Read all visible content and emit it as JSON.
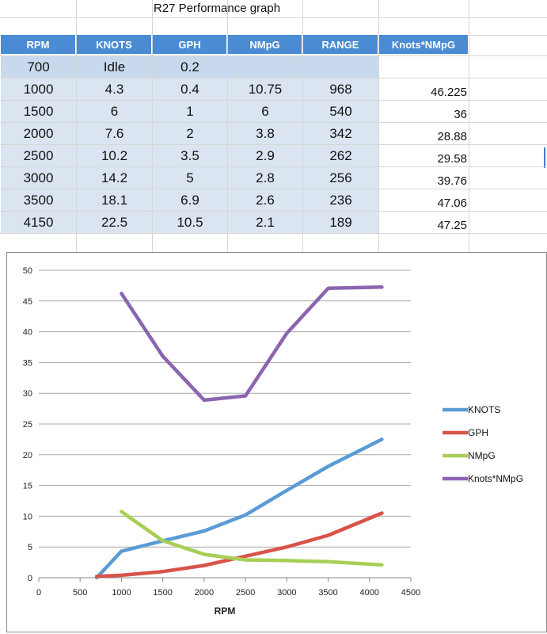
{
  "sheet": {
    "title": "R27 Performance graph",
    "headers": [
      "RPM",
      "KNOTS",
      "GPH",
      "NMpG",
      "RANGE",
      "Knots*NMpG"
    ],
    "rows": [
      [
        "700",
        "Idle",
        "0.2",
        "",
        "",
        ""
      ],
      [
        "1000",
        "4.3",
        "0.4",
        "10.75",
        "968",
        "46.225"
      ],
      [
        "1500",
        "6",
        "1",
        "6",
        "540",
        "36"
      ],
      [
        "2000",
        "7.6",
        "2",
        "3.8",
        "342",
        "28.88"
      ],
      [
        "2500",
        "10.2",
        "3.5",
        "2.9",
        "262",
        "29.58"
      ],
      [
        "3000",
        "14.2",
        "5",
        "2.8",
        "256",
        "39.76"
      ],
      [
        "3500",
        "18.1",
        "6.9",
        "2.6",
        "236",
        "47.06"
      ],
      [
        "4150",
        "22.5",
        "10.5",
        "2.1",
        "189",
        "47.25"
      ]
    ]
  },
  "chart_data": {
    "type": "line",
    "title": "",
    "xlabel": "RPM",
    "ylabel": "",
    "xlim": [
      0,
      4500
    ],
    "ylim": [
      0,
      50
    ],
    "xticks": [
      "0",
      "500",
      "1000",
      "1500",
      "2000",
      "2500",
      "3000",
      "3500",
      "4000",
      "4500"
    ],
    "yticks": [
      "0",
      "5",
      "10",
      "15",
      "20",
      "25",
      "30",
      "35",
      "40",
      "45",
      "50"
    ],
    "grid": true,
    "legend": "right",
    "series": [
      {
        "name": "KNOTS",
        "color": "#5b9bd5",
        "points": [
          [
            700,
            0
          ],
          [
            1000,
            4.3
          ],
          [
            1500,
            6
          ],
          [
            2000,
            7.6
          ],
          [
            2500,
            10.2
          ],
          [
            3000,
            14.2
          ],
          [
            3500,
            18.1
          ],
          [
            4150,
            22.5
          ]
        ]
      },
      {
        "name": "GPH",
        "color": "#d9534a",
        "points": [
          [
            700,
            0.2
          ],
          [
            1000,
            0.4
          ],
          [
            1500,
            1
          ],
          [
            2000,
            2
          ],
          [
            2500,
            3.5
          ],
          [
            3000,
            5
          ],
          [
            3500,
            6.9
          ],
          [
            4150,
            10.5
          ]
        ]
      },
      {
        "name": "NMpG",
        "color": "#a8cf55",
        "points": [
          [
            1000,
            10.75
          ],
          [
            1500,
            6
          ],
          [
            2000,
            3.8
          ],
          [
            2500,
            2.9
          ],
          [
            3000,
            2.8
          ],
          [
            3500,
            2.6
          ],
          [
            4150,
            2.1
          ]
        ]
      },
      {
        "name": "Knots*NMpG",
        "color": "#8b65b0",
        "points": [
          [
            1000,
            46.225
          ],
          [
            1500,
            36
          ],
          [
            2000,
            28.88
          ],
          [
            2500,
            29.58
          ],
          [
            3000,
            39.76
          ],
          [
            3500,
            47.06
          ],
          [
            4150,
            47.25
          ]
        ]
      }
    ]
  }
}
